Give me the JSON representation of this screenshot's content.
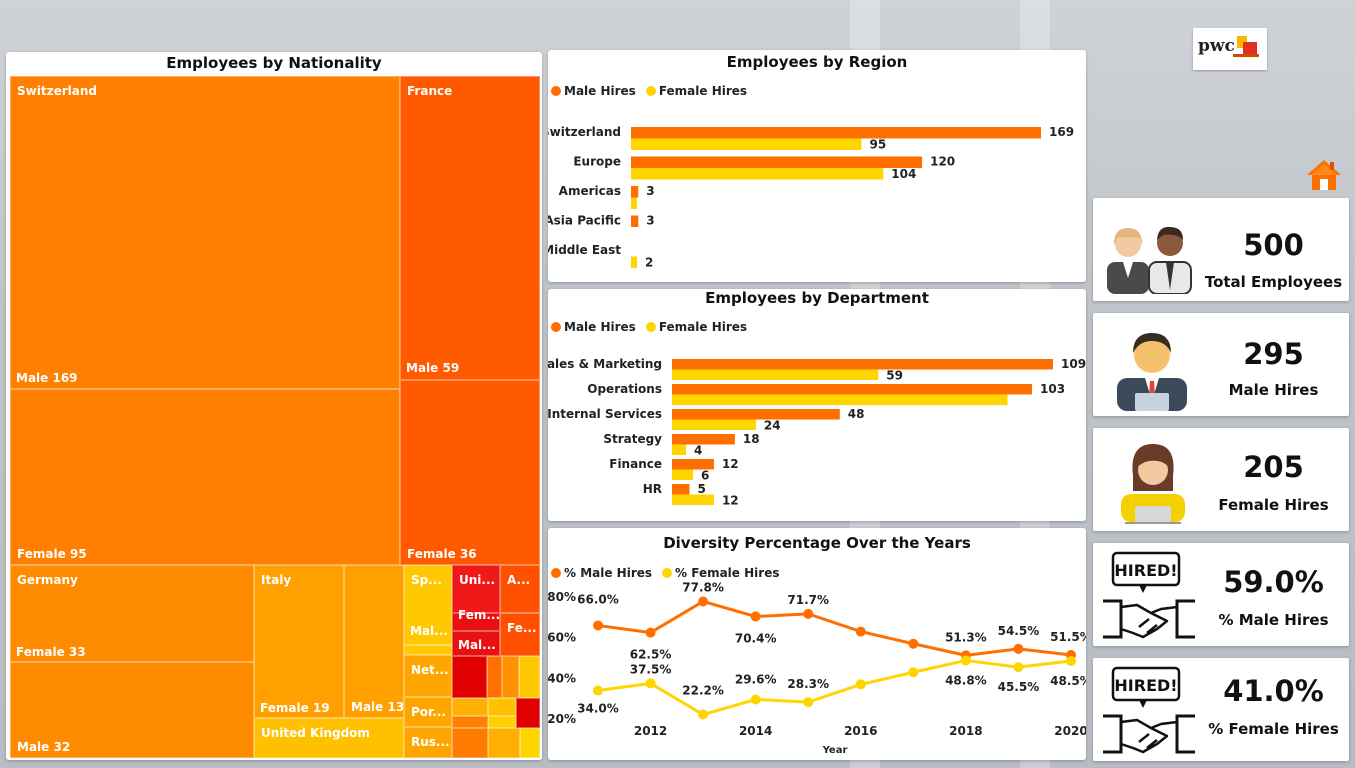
{
  "colors": {
    "male": "#FF6F00",
    "female": "#FFD500"
  },
  "logo_text": "pwc",
  "nationality": {
    "title": "Employees by Nationality",
    "cells": [
      {
        "id": "ch-name",
        "text": "Switzerland"
      },
      {
        "id": "ch-m",
        "text": "Male 169"
      },
      {
        "id": "ch-f",
        "text": "Female 95"
      },
      {
        "id": "fr-name",
        "text": "France"
      },
      {
        "id": "fr-m",
        "text": "Male 59"
      },
      {
        "id": "fr-f",
        "text": "Female 36"
      },
      {
        "id": "de-name",
        "text": "Germany"
      },
      {
        "id": "de-f",
        "text": "Female 33"
      },
      {
        "id": "de-m",
        "text": "Male 32"
      },
      {
        "id": "it-name",
        "text": "Italy"
      },
      {
        "id": "it-f",
        "text": "Female 19"
      },
      {
        "id": "it-m",
        "text": "Male 13"
      },
      {
        "id": "uk-name",
        "text": "United Kingdom"
      },
      {
        "id": "sp",
        "text": "Sp..."
      },
      {
        "id": "sp-m",
        "text": "Mal..."
      },
      {
        "id": "uni",
        "text": "Uni..."
      },
      {
        "id": "uni-f",
        "text": "Fem..."
      },
      {
        "id": "uni-m",
        "text": "Mal..."
      },
      {
        "id": "a",
        "text": "A..."
      },
      {
        "id": "a-f",
        "text": "Fe..."
      },
      {
        "id": "net",
        "text": "Net..."
      },
      {
        "id": "por",
        "text": "Por..."
      },
      {
        "id": "rus",
        "text": "Rus..."
      }
    ]
  },
  "region": {
    "title": "Employees by Region",
    "legend": [
      "Male Hires",
      "Female Hires"
    ],
    "categories": [
      "Switzerland",
      "Europe",
      "Americas",
      "Asia Pacific",
      "Middle East"
    ],
    "male": [
      169,
      120,
      3,
      3,
      null
    ],
    "female": [
      95,
      104,
      1,
      null,
      2
    ],
    "labels_male": [
      "169",
      "120",
      "3",
      "3",
      ""
    ],
    "labels_female": [
      "95",
      "104",
      "",
      "",
      "2"
    ]
  },
  "department": {
    "title": "Employees by Department",
    "legend": [
      "Male Hires",
      "Female Hires"
    ],
    "categories": [
      "Sales & Marketing",
      "Operations",
      "Internal Services",
      "Strategy",
      "Finance",
      "HR"
    ],
    "male": [
      109,
      103,
      48,
      18,
      12,
      5
    ],
    "female": [
      59,
      96,
      24,
      4,
      6,
      12
    ],
    "labels_male": [
      "109",
      "103",
      "48",
      "18",
      "12",
      "5"
    ],
    "labels_female": [
      "59",
      "",
      "24",
      "4",
      "6",
      "12"
    ]
  },
  "chart_data": {
    "type": "line",
    "title": "Diversity Percentage Over the Years",
    "xlabel": "Year",
    "ylabel": "",
    "x": [
      2011,
      2012,
      2013,
      2014,
      2015,
      2016,
      2017,
      2018,
      2019,
      2020
    ],
    "x_ticks": [
      "2012",
      "2014",
      "2016",
      "2018",
      "2020"
    ],
    "y_ticks": [
      "80%",
      "60%",
      "40%",
      "20%"
    ],
    "ylim": [
      20,
      80
    ],
    "series": [
      {
        "name": "% Male Hires",
        "values": [
          66.0,
          62.5,
          77.8,
          70.4,
          71.7,
          63.0,
          57.0,
          51.3,
          54.5,
          51.5
        ],
        "labels": [
          "66.0%",
          "62.5%",
          "77.8%",
          "70.4%",
          "71.7%",
          "",
          "",
          "51.3%",
          "54.5%",
          "51.5%"
        ]
      },
      {
        "name": "% Female Hires",
        "values": [
          34.0,
          37.5,
          22.2,
          29.6,
          28.3,
          37.0,
          43.0,
          48.8,
          45.5,
          48.5
        ],
        "labels": [
          "34.0%",
          "37.5%",
          "22.2%",
          "29.6%",
          "28.3%",
          "",
          "",
          "48.8%",
          "45.5%",
          "48.5%"
        ]
      }
    ]
  },
  "kpis": {
    "total": {
      "value": "500",
      "label": "Total Employees"
    },
    "male": {
      "value": "295",
      "label": "Male Hires"
    },
    "female": {
      "value": "205",
      "label": "Female Hires"
    },
    "pct_male": {
      "value": "59.0%",
      "label": "% Male Hires"
    },
    "pct_female": {
      "value": "41.0%",
      "label": "% Female Hires"
    },
    "hired_text": "HIRED!"
  }
}
